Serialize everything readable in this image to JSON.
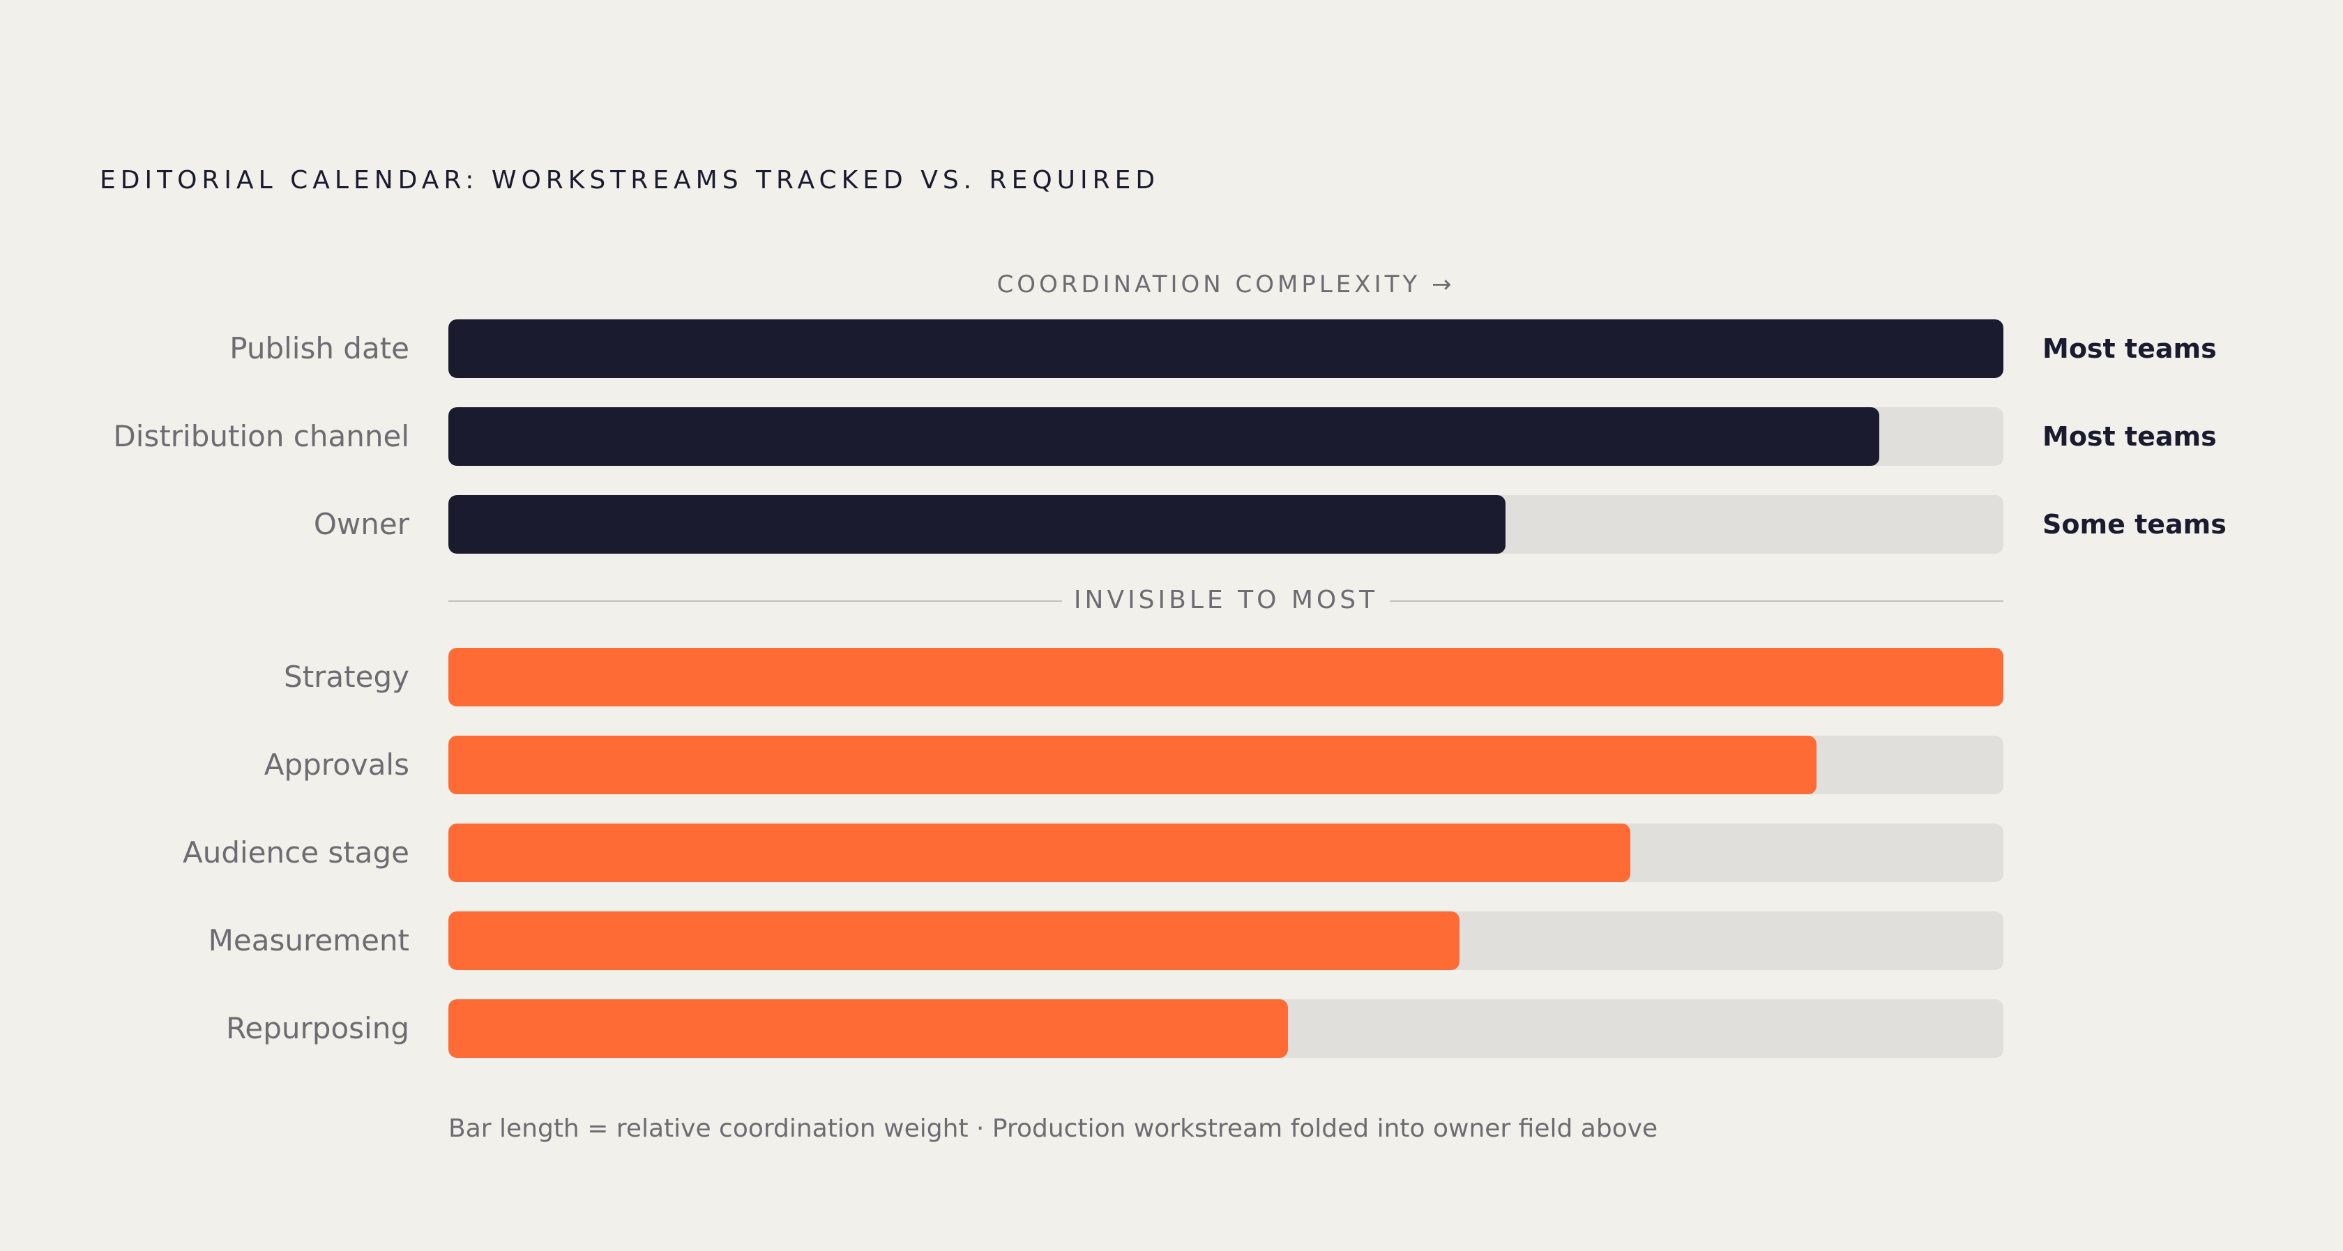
{
  "chart_data": {
    "type": "bar",
    "orientation": "horizontal",
    "title": "EDITORIAL CALENDAR: WORKSTREAMS TRACKED VS. REQUIRED",
    "axis_label": "COORDINATION COMPLEXITY →",
    "xlim": [
      0,
      100
    ],
    "grid": false,
    "groups": [
      {
        "name": "",
        "color": "#1a1b2e",
        "categories": [
          "Publish date",
          "Distribution channel",
          "Owner"
        ],
        "values": [
          100,
          92,
          68
        ],
        "annotations": [
          "Most teams",
          "Most teams",
          "Some teams"
        ]
      },
      {
        "name": "INVISIBLE TO MOST",
        "color": "#ff6b35",
        "categories": [
          "Strategy",
          "Approvals",
          "Audience stage",
          "Measurement",
          "Repurposing"
        ],
        "values": [
          100,
          88,
          76,
          65,
          54
        ],
        "annotations": []
      }
    ],
    "track_color": "#e1dfdb",
    "footnote": "Bar length = relative coordination weight · Production workstream folded into owner field above"
  },
  "colors": {
    "background": "#f2f0eb",
    "tracked": "#1a1b2e",
    "required": "#ff6b35",
    "track": "#e1dfdb",
    "muted_text": "#6c6c72"
  }
}
